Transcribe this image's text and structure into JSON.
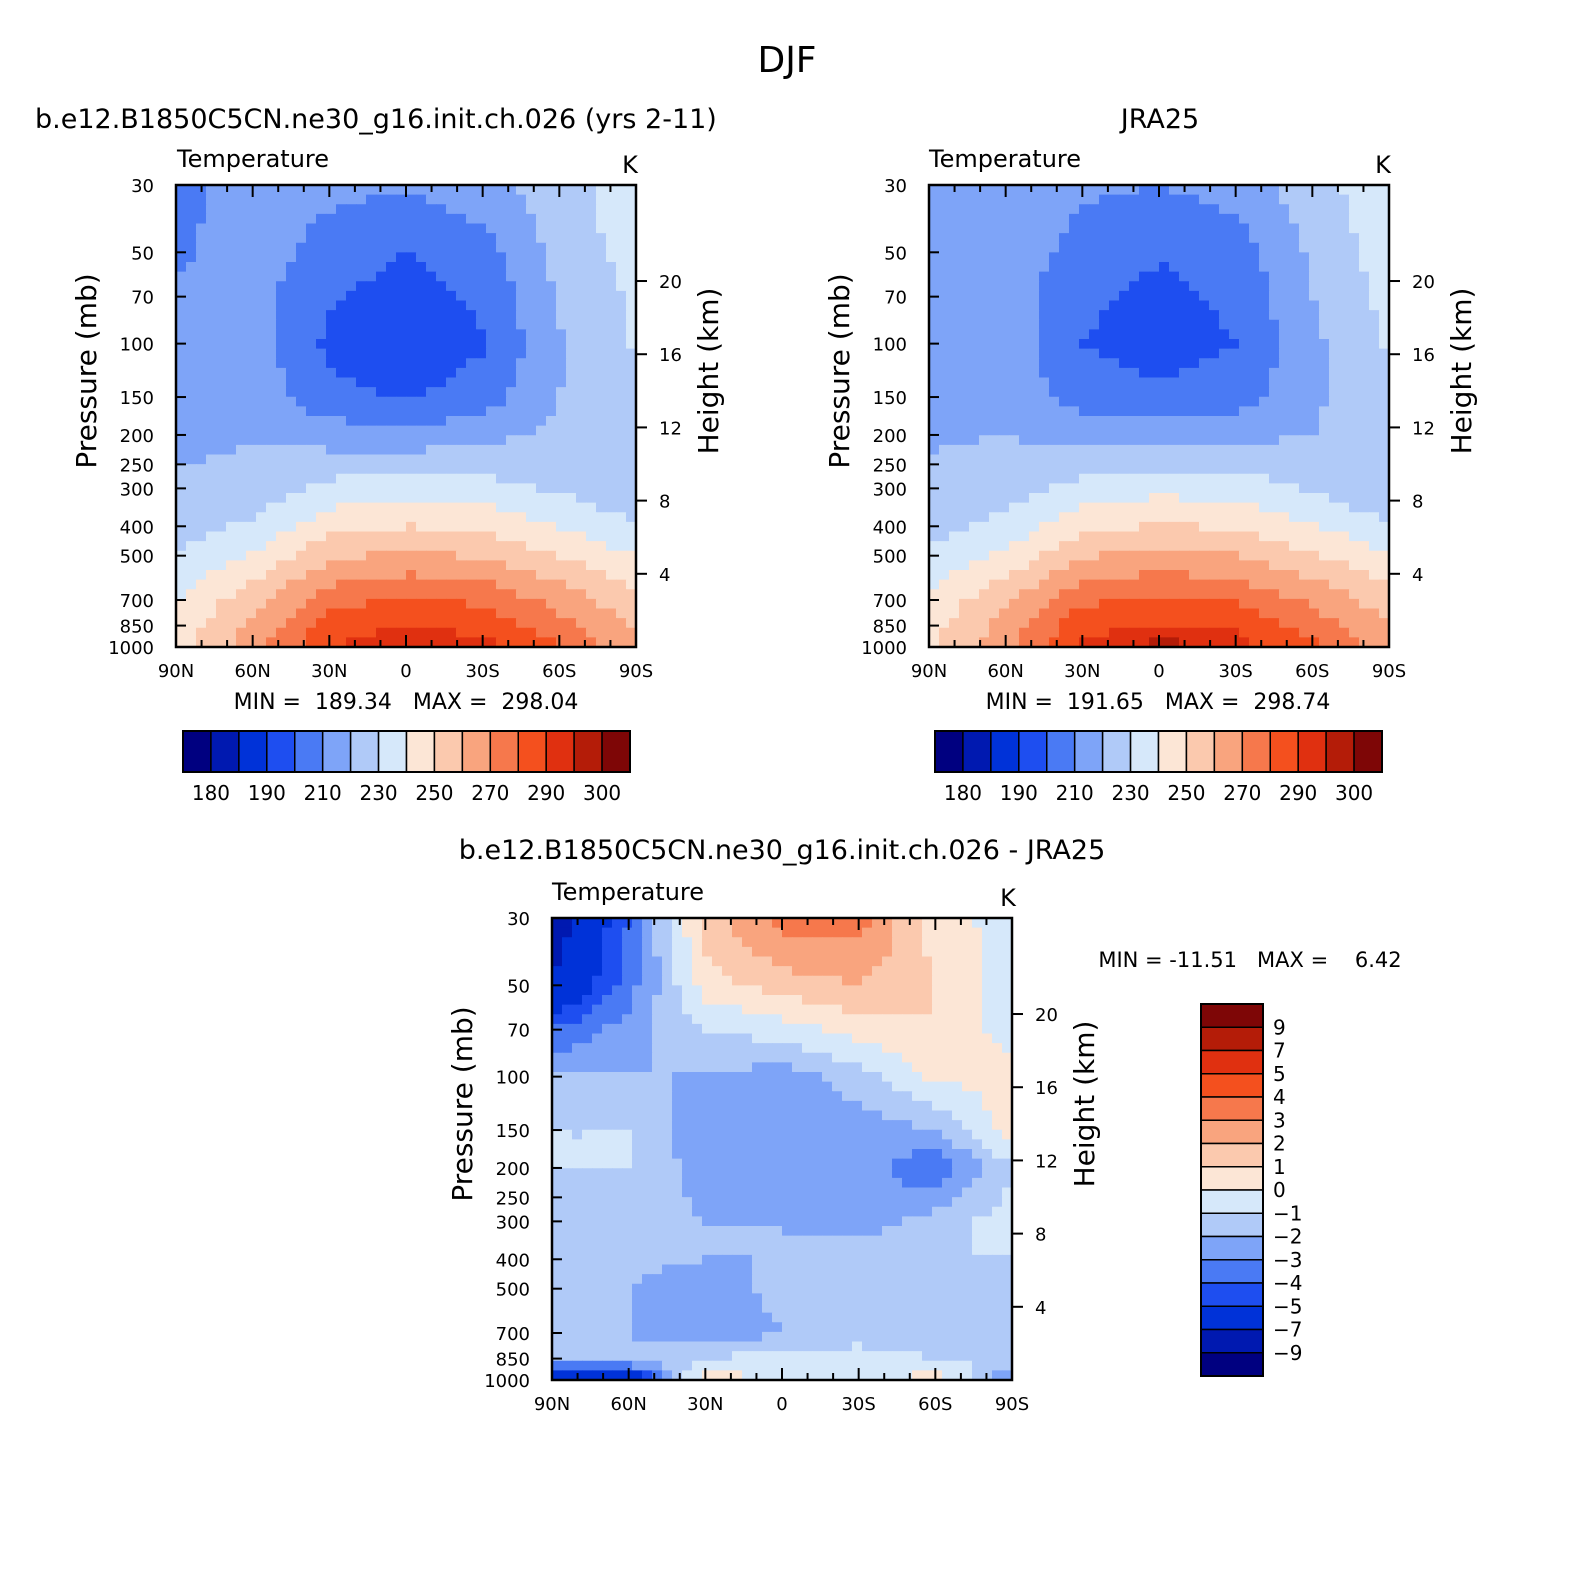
{
  "title": "DJF",
  "colors": {
    "abs_levels": [
      "#000080",
      "#0019b0",
      "#0032d8",
      "#1e4ef0",
      "#4a7af4",
      "#7ea4f8",
      "#b0caf8",
      "#d6e8fa",
      "#fce6d6",
      "#fbc9ae",
      "#f9a47e",
      "#f6784c",
      "#f4501e",
      "#e03010",
      "#b41c08",
      "#7e0606"
    ],
    "diff_levels": [
      "#000080",
      "#0019b0",
      "#0032d8",
      "#1e4ef0",
      "#4a7af4",
      "#7ea4f8",
      "#b0caf8",
      "#d6e8fa",
      "#fce6d6",
      "#fbc9ae",
      "#f9a47e",
      "#f6784c",
      "#f4501e",
      "#e03010",
      "#b41c08",
      "#7e0606"
    ]
  },
  "panels": {
    "model": {
      "title": "b.e12.B1850C5CN.ne30_g16.init.ch.026 (yrs 2-11)",
      "left_label": "Temperature",
      "right_label": "K",
      "minmax": "MIN =  189.34   MAX =  298.04"
    },
    "obs": {
      "title": "JRA25",
      "left_label": "Temperature",
      "right_label": "K",
      "minmax": "MIN =  191.65   MAX =  298.74"
    },
    "diff": {
      "title": "b.e12.B1850C5CN.ne30_g16.init.ch.026 - JRA25",
      "left_label": "Temperature",
      "right_label": "K",
      "minmax": "MIN = -11.51   MAX =    6.42"
    }
  },
  "axes": {
    "ylabel": "Pressure (mb)",
    "y2label": "Height (km)",
    "pressure_ticks": [
      "30",
      "50",
      "70",
      "100",
      "150",
      "200",
      "250",
      "300",
      "400",
      "500",
      "700",
      "850",
      "1000"
    ],
    "pressure_values": [
      30,
      50,
      70,
      100,
      150,
      200,
      250,
      300,
      400,
      500,
      700,
      850,
      1000
    ],
    "height_ticks": [
      "4",
      "8",
      "12",
      "16",
      "20"
    ],
    "height_values": [
      4,
      8,
      12,
      16,
      20
    ],
    "lat_ticks": [
      "90N",
      "60N",
      "30N",
      "0",
      "30S",
      "60S",
      "90S"
    ],
    "lat_values": [
      90,
      60,
      30,
      0,
      -30,
      -60,
      -90
    ]
  },
  "colorbars": {
    "abs_labels": [
      "180",
      "190",
      "210",
      "230",
      "250",
      "270",
      "290",
      "300"
    ],
    "diff_labels": [
      "9",
      "7",
      "5",
      "4",
      "3",
      "2",
      "1",
      "0",
      "−1",
      "−2",
      "−3",
      "−4",
      "−5",
      "−7",
      "−9"
    ]
  },
  "chart_data": [
    {
      "type": "heatmap",
      "title": "b.e12.B1850C5CN.ne30_g16.init.ch.026 (yrs 2-11)",
      "subtitle": "Temperature",
      "units": "K",
      "xlabel": "",
      "ylabel": "Pressure (mb)",
      "y2label": "Height (km)",
      "x": [
        90,
        60,
        30,
        0,
        -30,
        -60,
        -90
      ],
      "y": [
        30,
        50,
        70,
        100,
        150,
        200,
        300,
        400,
        500,
        700,
        850,
        1000
      ],
      "z": [
        [
          205,
          218,
          213,
          211,
          216,
          226,
          236
        ],
        [
          208,
          216,
          205,
          200,
          206,
          224,
          234
        ],
        [
          212,
          214,
          201,
          196,
          202,
          221,
          232
        ],
        [
          214,
          215,
          198,
          192,
          199,
          219,
          231
        ],
        [
          216,
          217,
          203,
          199,
          205,
          220,
          226
        ],
        [
          218,
          219,
          215,
          213,
          217,
          222,
          224
        ],
        [
          221,
          224,
          233,
          236,
          234,
          228,
          223
        ],
        [
          226,
          232,
          246,
          250,
          248,
          240,
          230
        ],
        [
          230,
          241,
          258,
          262,
          259,
          250,
          240
        ],
        [
          240,
          256,
          276,
          281,
          278,
          266,
          252
        ],
        [
          244,
          262,
          285,
          290,
          287,
          274,
          258
        ],
        [
          245,
          265,
          290,
          296,
          293,
          282,
          262
        ]
      ],
      "min": 189.34,
      "max": 298.04,
      "levels": [
        180,
        185,
        190,
        200,
        210,
        220,
        230,
        240,
        250,
        260,
        270,
        280,
        290,
        295,
        300
      ]
    },
    {
      "type": "heatmap",
      "title": "JRA25",
      "subtitle": "Temperature",
      "units": "K",
      "xlabel": "",
      "ylabel": "Pressure (mb)",
      "y2label": "Height (km)",
      "x": [
        90,
        60,
        30,
        0,
        -30,
        -60,
        -90
      ],
      "y": [
        30,
        50,
        70,
        100,
        150,
        200,
        300,
        400,
        500,
        700,
        850,
        1000
      ],
      "z": [
        [
          214,
          218,
          212,
          210,
          214,
          226,
          237
        ],
        [
          214,
          216,
          206,
          201,
          205,
          222,
          235
        ],
        [
          215,
          215,
          202,
          197,
          202,
          220,
          233
        ],
        [
          216,
          216,
          200,
          195,
          200,
          218,
          231
        ],
        [
          218,
          218,
          205,
          202,
          205,
          218,
          228
        ],
        [
          219,
          220,
          216,
          215,
          217,
          220,
          226
        ],
        [
          222,
          225,
          234,
          237,
          235,
          229,
          220
        ],
        [
          227,
          233,
          247,
          251,
          249,
          241,
          231
        ],
        [
          231,
          242,
          259,
          263,
          260,
          251,
          241
        ],
        [
          242,
          258,
          278,
          282,
          279,
          268,
          254
        ],
        [
          246,
          264,
          287,
          291,
          288,
          276,
          260
        ],
        [
          248,
          266,
          291,
          297,
          294,
          283,
          264
        ]
      ],
      "min": 191.65,
      "max": 298.74,
      "levels": [
        180,
        185,
        190,
        200,
        210,
        220,
        230,
        240,
        250,
        260,
        270,
        280,
        290,
        295,
        300
      ]
    },
    {
      "type": "heatmap",
      "title": "b.e12.B1850C5CN.ne30_g16.init.ch.026 - JRA25",
      "subtitle": "Temperature",
      "units": "K",
      "xlabel": "",
      "ylabel": "Pressure (mb)",
      "y2label": "Height (km)",
      "x": [
        90,
        60,
        30,
        0,
        -30,
        -60,
        -90
      ],
      "y": [
        30,
        50,
        70,
        100,
        150,
        200,
        300,
        400,
        500,
        700,
        850,
        1000
      ],
      "z": [
        [
          -8,
          -4,
          1.5,
          3.5,
          3.5,
          0.5,
          -0.5
        ],
        [
          -7,
          -3.5,
          0.5,
          1.5,
          2,
          1,
          -0.5
        ],
        [
          -4,
          -2.5,
          -1,
          -0.5,
          0.5,
          1,
          -0.5
        ],
        [
          -2,
          -2,
          -2,
          -2.5,
          -1.5,
          0.2,
          0.5
        ],
        [
          -1,
          -1,
          -3,
          -3,
          -2.5,
          -2,
          0.5
        ],
        [
          -1,
          -1,
          -2.5,
          -2.5,
          -2.5,
          -4,
          -1
        ],
        [
          -1,
          -1.5,
          -2,
          -2,
          -2.5,
          -1.5,
          -0.5
        ],
        [
          -1.5,
          -1.5,
          -2,
          -2,
          -1.5,
          -1,
          -1
        ],
        [
          -2,
          -2,
          -3,
          -1.5,
          -1,
          -2,
          -1
        ],
        [
          -2,
          -2,
          -3,
          -2,
          -1.5,
          -1.5,
          -1
        ],
        [
          -1.5,
          -1.5,
          -1,
          -0.5,
          -0.5,
          -1,
          -1
        ],
        [
          -8,
          -7,
          1,
          -0.5,
          -0.5,
          0.5,
          -3
        ]
      ],
      "min": -11.51,
      "max": 6.42,
      "levels": [
        -9,
        -7,
        -5,
        -4,
        -3,
        -2,
        -1,
        0,
        1,
        2,
        3,
        4,
        5,
        7,
        9
      ]
    }
  ]
}
